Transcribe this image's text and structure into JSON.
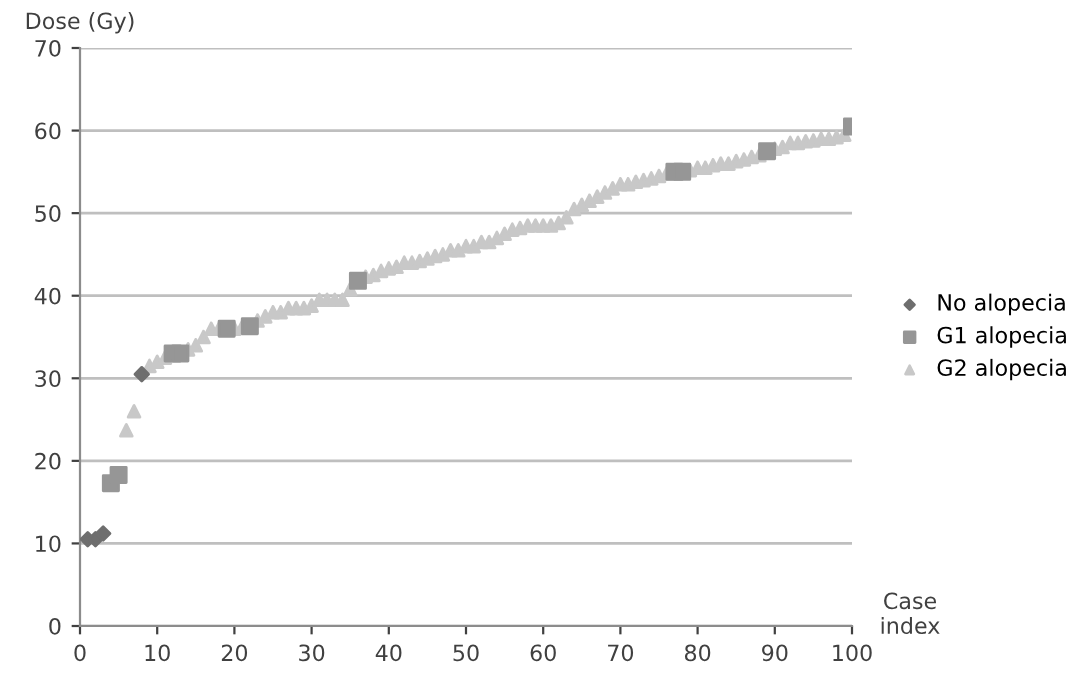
{
  "chart_data": {
    "type": "scatter",
    "ylabel": "Dose (Gy)",
    "xlabel": "Case\nindex",
    "xlim": [
      0,
      100
    ],
    "xticks": [
      0,
      10,
      20,
      30,
      40,
      50,
      60,
      70,
      80,
      90,
      100
    ],
    "ylim": [
      0,
      70
    ],
    "yticks": [
      0,
      10,
      20,
      30,
      40,
      50,
      60,
      70
    ],
    "grid": "y",
    "legend": "right",
    "series": [
      {
        "name": "No alopecia",
        "color": "#6e6e6e",
        "marker": "diamond",
        "x": [
          1,
          2,
          3,
          8
        ],
        "values": [
          10.5,
          10.5,
          11.2,
          30.5
        ]
      },
      {
        "name": "G1 alopecia",
        "color": "#969696",
        "marker": "square",
        "x": [
          4,
          5,
          12,
          13,
          19,
          22,
          36,
          77,
          78,
          89,
          100
        ],
        "values": [
          17.3,
          18.3,
          33,
          33,
          36,
          36.3,
          41.8,
          55,
          55,
          57.5,
          60.5
        ]
      },
      {
        "name": "G2 alopecia",
        "color": "#c8c8c8",
        "marker": "triangle",
        "x": [
          6,
          7,
          9,
          10,
          11,
          14,
          15,
          16,
          17,
          18,
          20,
          21,
          23,
          24,
          25,
          26,
          27,
          28,
          29,
          30,
          31,
          32,
          33,
          34,
          35,
          37,
          38,
          39,
          40,
          41,
          42,
          43,
          44,
          45,
          46,
          47,
          48,
          49,
          50,
          51,
          52,
          53,
          54,
          55,
          56,
          57,
          58,
          59,
          60,
          61,
          62,
          63,
          64,
          65,
          66,
          67,
          68,
          69,
          70,
          71,
          72,
          73,
          74,
          75,
          76,
          79,
          80,
          81,
          82,
          83,
          84,
          85,
          86,
          87,
          88,
          90,
          91,
          92,
          93,
          94,
          95,
          96,
          97,
          98,
          99
        ],
        "values": [
          23.7,
          26,
          31.5,
          32,
          32.5,
          33.5,
          34,
          35,
          36,
          36,
          36,
          36.2,
          37,
          37.5,
          38,
          38,
          38.5,
          38.5,
          38.5,
          38.8,
          39.5,
          39.5,
          39.5,
          39.5,
          40.8,
          42.3,
          42.5,
          43,
          43.3,
          43.5,
          44,
          44,
          44.2,
          44.5,
          44.8,
          45,
          45.5,
          45.5,
          46,
          46,
          46.5,
          46.5,
          47,
          47.5,
          48,
          48.2,
          48.5,
          48.5,
          48.5,
          48.5,
          48.8,
          49.5,
          50.5,
          51,
          51.5,
          52,
          52.5,
          53,
          53.5,
          53.5,
          53.8,
          54,
          54.2,
          54.5,
          54.8,
          55.2,
          55.5,
          55.5,
          55.8,
          56,
          56,
          56.3,
          56.5,
          56.8,
          57,
          57.8,
          58,
          58.5,
          58.5,
          58.7,
          58.8,
          59,
          59,
          59.2,
          59.5
        ]
      }
    ]
  }
}
